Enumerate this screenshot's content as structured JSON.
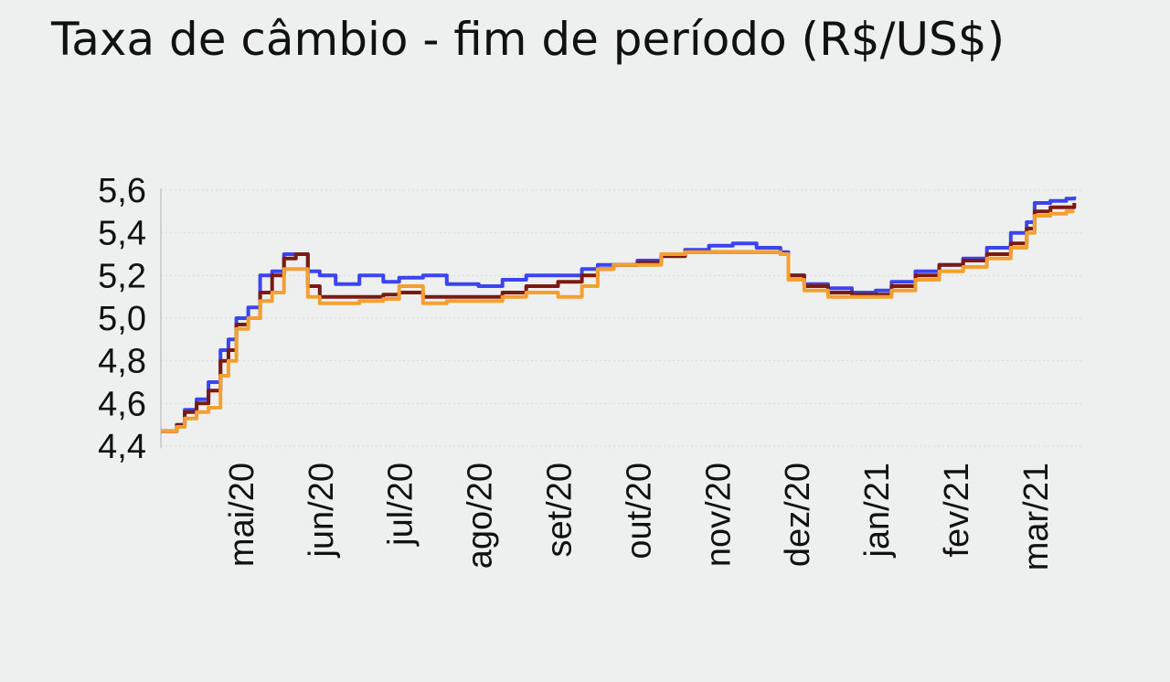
{
  "chart_data": {
    "type": "line",
    "title": "Taxa de câmbio - fim de período (R$/US$)",
    "xlabel": "",
    "ylabel": "",
    "ylim": [
      4.4,
      5.6
    ],
    "xlim": [
      0,
      11.6
    ],
    "grid": true,
    "y_ticks": [
      {
        "value": 4.4,
        "label": "4,4"
      },
      {
        "value": 4.6,
        "label": "4,6"
      },
      {
        "value": 4.8,
        "label": "4,8"
      },
      {
        "value": 5.0,
        "label": "5,0"
      },
      {
        "value": 5.2,
        "label": "5,2"
      },
      {
        "value": 5.4,
        "label": "5,4"
      },
      {
        "value": 5.6,
        "label": "5,6"
      }
    ],
    "x_ticks": [
      {
        "value": 1,
        "label": "mai/20"
      },
      {
        "value": 2,
        "label": "jun/20"
      },
      {
        "value": 3,
        "label": "jul/20"
      },
      {
        "value": 4,
        "label": "ago/20"
      },
      {
        "value": 5,
        "label": "set/20"
      },
      {
        "value": 6,
        "label": "out/20"
      },
      {
        "value": 7,
        "label": "nov/20"
      },
      {
        "value": 8,
        "label": "dez/20"
      },
      {
        "value": 9,
        "label": "jan/21"
      },
      {
        "value": 10,
        "label": "fev/21"
      },
      {
        "value": 11,
        "label": "mar/21"
      }
    ],
    "series": [
      {
        "color": "#3a45f0",
        "x": [
          0,
          0.2,
          0.3,
          0.45,
          0.6,
          0.75,
          0.85,
          0.95,
          1.1,
          1.25,
          1.4,
          1.55,
          1.7,
          1.85,
          2.0,
          2.2,
          2.5,
          2.8,
          3.0,
          3.3,
          3.6,
          4.0,
          4.3,
          4.6,
          5.0,
          5.3,
          5.5,
          5.7,
          6.0,
          6.3,
          6.6,
          6.9,
          7.2,
          7.5,
          7.8,
          7.9,
          8.1,
          8.4,
          8.7,
          9.0,
          9.2,
          9.5,
          9.8,
          10.1,
          10.4,
          10.7,
          10.9,
          11.0,
          11.2,
          11.4,
          11.5
        ],
        "y": [
          4.47,
          4.5,
          4.57,
          4.62,
          4.7,
          4.85,
          4.9,
          5.0,
          5.05,
          5.2,
          5.22,
          5.3,
          5.3,
          5.22,
          5.2,
          5.16,
          5.2,
          5.17,
          5.19,
          5.2,
          5.16,
          5.15,
          5.18,
          5.2,
          5.2,
          5.23,
          5.25,
          5.25,
          5.27,
          5.3,
          5.32,
          5.34,
          5.35,
          5.33,
          5.31,
          5.2,
          5.16,
          5.14,
          5.12,
          5.13,
          5.17,
          5.22,
          5.25,
          5.28,
          5.33,
          5.4,
          5.45,
          5.54,
          5.55,
          5.56,
          5.57
        ]
      },
      {
        "color": "#7a1a10",
        "x": [
          0,
          0.2,
          0.3,
          0.45,
          0.6,
          0.75,
          0.85,
          0.95,
          1.1,
          1.25,
          1.4,
          1.55,
          1.7,
          1.85,
          2.0,
          2.2,
          2.5,
          2.8,
          3.0,
          3.3,
          3.6,
          4.0,
          4.3,
          4.6,
          5.0,
          5.3,
          5.5,
          5.7,
          6.0,
          6.3,
          6.6,
          6.9,
          7.2,
          7.5,
          7.8,
          7.9,
          8.1,
          8.4,
          8.7,
          9.0,
          9.2,
          9.5,
          9.8,
          10.1,
          10.4,
          10.7,
          10.9,
          11.0,
          11.2,
          11.4,
          11.5
        ],
        "y": [
          4.47,
          4.5,
          4.56,
          4.6,
          4.66,
          4.8,
          4.85,
          4.97,
          5.0,
          5.12,
          5.2,
          5.28,
          5.3,
          5.15,
          5.1,
          5.1,
          5.1,
          5.11,
          5.12,
          5.1,
          5.1,
          5.1,
          5.12,
          5.15,
          5.17,
          5.2,
          5.23,
          5.25,
          5.26,
          5.29,
          5.31,
          5.31,
          5.31,
          5.31,
          5.3,
          5.2,
          5.15,
          5.12,
          5.11,
          5.11,
          5.15,
          5.2,
          5.25,
          5.27,
          5.3,
          5.35,
          5.42,
          5.5,
          5.52,
          5.52,
          5.54
        ]
      },
      {
        "color": "#f3a030",
        "x": [
          0,
          0.2,
          0.3,
          0.45,
          0.6,
          0.75,
          0.85,
          0.95,
          1.1,
          1.25,
          1.4,
          1.55,
          1.7,
          1.85,
          2.0,
          2.2,
          2.5,
          2.8,
          3.0,
          3.3,
          3.6,
          4.0,
          4.3,
          4.6,
          5.0,
          5.3,
          5.5,
          5.7,
          6.0,
          6.3,
          6.6,
          6.9,
          7.2,
          7.5,
          7.8,
          7.9,
          8.1,
          8.4,
          8.7,
          9.0,
          9.2,
          9.5,
          9.8,
          10.1,
          10.4,
          10.7,
          10.9,
          11.0,
          11.2,
          11.4,
          11.5
        ],
        "y": [
          4.47,
          4.49,
          4.53,
          4.56,
          4.58,
          4.73,
          4.8,
          4.95,
          5.0,
          5.08,
          5.12,
          5.23,
          5.23,
          5.1,
          5.07,
          5.07,
          5.08,
          5.09,
          5.15,
          5.07,
          5.08,
          5.08,
          5.1,
          5.12,
          5.1,
          5.15,
          5.23,
          5.25,
          5.25,
          5.3,
          5.31,
          5.31,
          5.31,
          5.31,
          5.3,
          5.18,
          5.13,
          5.1,
          5.1,
          5.1,
          5.13,
          5.18,
          5.22,
          5.24,
          5.28,
          5.33,
          5.4,
          5.48,
          5.49,
          5.5,
          5.5
        ]
      }
    ]
  }
}
